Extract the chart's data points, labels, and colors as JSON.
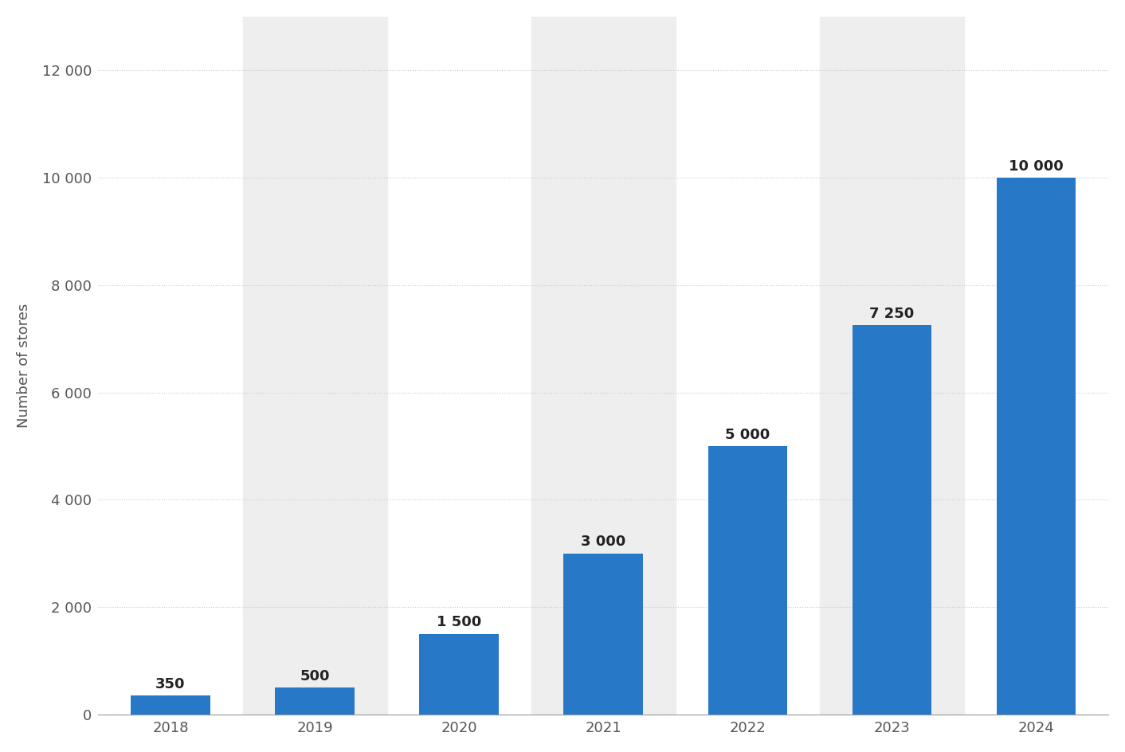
{
  "categories": [
    "2018",
    "2019",
    "2020",
    "2021",
    "2022",
    "2023",
    "2024"
  ],
  "values": [
    350,
    500,
    1500,
    3000,
    5000,
    7250,
    10000
  ],
  "bar_color": "#2878c8",
  "bar_labels": [
    "350",
    "500",
    "1 500",
    "3 000",
    "5 000",
    "7 250",
    "10 000"
  ],
  "ylabel": "Number of stores",
  "ylim": [
    0,
    13000
  ],
  "yticks": [
    0,
    2000,
    4000,
    6000,
    8000,
    10000,
    12000
  ],
  "ytick_labels": [
    "0",
    "2 000",
    "4 000",
    "6 000",
    "8 000",
    "10 000",
    "12 000"
  ],
  "background_color": "#ffffff",
  "plot_bg_color": "#ffffff",
  "stripe_color": "#eeeeee",
  "grid_color": "#cccccc",
  "bar_label_fontsize": 13,
  "axis_label_fontsize": 13,
  "tick_label_fontsize": 13,
  "stripe_indices": [
    1,
    3,
    5
  ]
}
